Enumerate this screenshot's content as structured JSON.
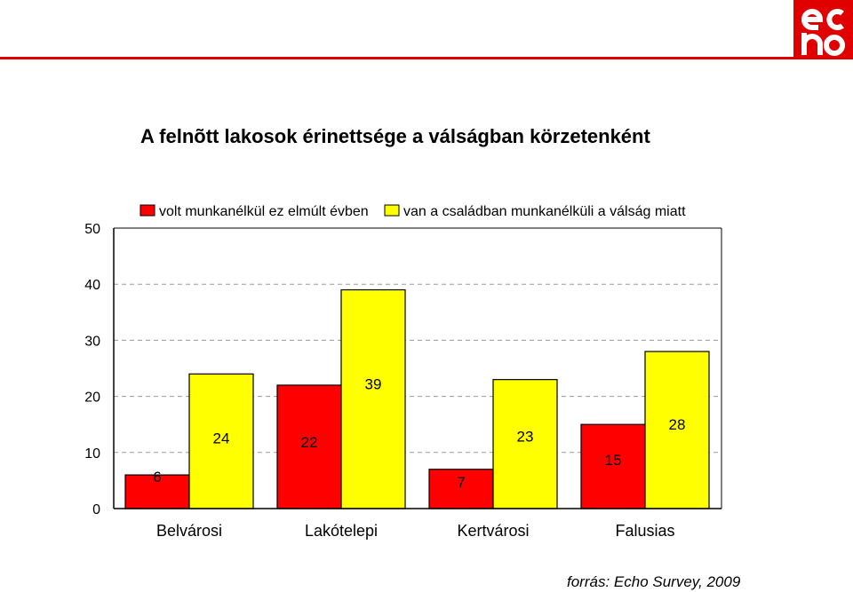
{
  "chart_data": {
    "type": "bar",
    "title": "A felnõtt lakosok érinettsége a válságban körzetenként",
    "categories": [
      "Belvárosi",
      "Lakótelepi",
      "Kertvárosi",
      "Falusias"
    ],
    "series": [
      {
        "name": "volt munkanélkül ez elmúlt évben",
        "color": "#ff0000",
        "values": [
          6,
          22,
          7,
          15
        ]
      },
      {
        "name": "van a családban munkanélküli a válság miatt",
        "color": "#ffff00",
        "values": [
          24,
          39,
          23,
          28
        ]
      }
    ],
    "ylim": [
      0,
      50
    ],
    "yticks": [
      0,
      10,
      20,
      30,
      40,
      50
    ],
    "grid": true,
    "legend": "top",
    "source": "forrás: Echo Survey, 2009"
  },
  "logo": {
    "text": "echo",
    "color": "#e00000"
  }
}
